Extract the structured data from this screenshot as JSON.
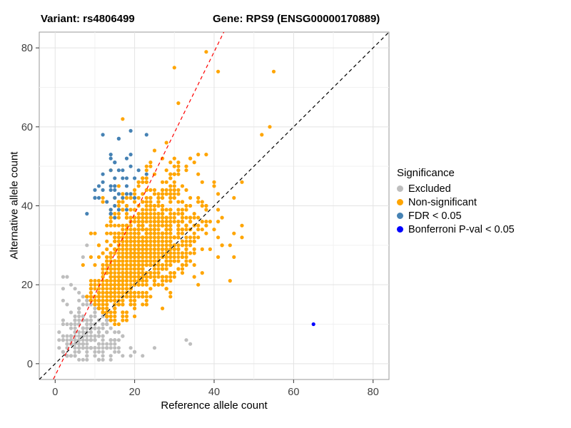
{
  "titles": {
    "variant": "Variant: rs4806499",
    "gene": "Gene: RPS9 (ENSG00000170889)"
  },
  "axes": {
    "x_label": "Reference allele count",
    "y_label": "Alternative allele count",
    "x_ticks": [
      0,
      20,
      40,
      60,
      80
    ],
    "y_ticks": [
      0,
      20,
      40,
      60,
      80
    ],
    "x_minor": [
      10,
      30,
      50,
      70
    ],
    "y_minor": [
      10,
      30,
      50,
      70
    ]
  },
  "legend": {
    "title": "Significance",
    "items": [
      {
        "label": "Excluded",
        "color": "#BEBEBE"
      },
      {
        "label": "Non-significant",
        "color": "#FFA500"
      },
      {
        "label": "FDR < 0.05",
        "color": "#4682B4"
      },
      {
        "label": "Bonferroni P-val < 0.05",
        "color": "#0000FF"
      }
    ]
  },
  "chart_data": {
    "type": "scatter",
    "title": "Variant: rs4806499 / Gene: RPS9 (ENSG00000170889)",
    "xlabel": "Reference allele count",
    "ylabel": "Alternative allele count",
    "xlim": [
      -4,
      84
    ],
    "ylim": [
      -4,
      84
    ],
    "grid": true,
    "legend_position": "right",
    "point_radius": 2.6,
    "seed": 11,
    "series": [
      {
        "name": "Excluded",
        "color": "#BEBEBE",
        "n": 260,
        "model": {
          "total_mean": 15,
          "total_sd": 5,
          "total_min": 5,
          "total_max": 24,
          "frac_mean": 0.45,
          "frac_sd": 0.18,
          "frac_min": 0.08,
          "frac_max": 0.92
        },
        "extra_points": [
          [
            8,
            30
          ],
          [
            7,
            27
          ],
          [
            9,
            33
          ],
          [
            25,
            4
          ],
          [
            33,
            6
          ],
          [
            20,
            3
          ],
          [
            34,
            5
          ],
          [
            3,
            22
          ],
          [
            12,
            2
          ],
          [
            2,
            16
          ]
        ]
      },
      {
        "name": "Non-significant",
        "color": "#FFA500",
        "n": 1500,
        "model": {
          "total_mean": 48,
          "total_sd": 15,
          "total_min": 25,
          "total_max": 120,
          "frac_mean": 0.57,
          "frac_sd": 0.07,
          "frac_min": 0.33,
          "frac_max": 0.78
        },
        "extra_points": [
          [
            38,
            79
          ],
          [
            41,
            74
          ],
          [
            30,
            75
          ],
          [
            54,
            60
          ],
          [
            55,
            74
          ],
          [
            31,
            66
          ],
          [
            47,
            46
          ],
          [
            52,
            58
          ],
          [
            44,
            21
          ]
        ]
      },
      {
        "name": "FDR < 0.05",
        "color": "#4682B4",
        "n": 46,
        "model": {
          "total_mean": 60,
          "total_sd": 8,
          "total_min": 52,
          "total_max": 75,
          "frac_mean": 0.75,
          "frac_sd": 0.04,
          "frac_min": 0.68,
          "frac_max": 0.8
        },
        "extra_points": [
          [
            8,
            38
          ],
          [
            10,
            44
          ],
          [
            23,
            58
          ],
          [
            19,
            59
          ],
          [
            12,
            58
          ],
          [
            16,
            57
          ]
        ]
      },
      {
        "name": "Bonferroni P-val < 0.05",
        "color": "#0000FF",
        "n": 0,
        "extra_points": [
          [
            65,
            10
          ]
        ]
      }
    ],
    "reference_lines": [
      {
        "name": "identity",
        "slope": 1,
        "intercept": 0,
        "color": "#000000",
        "style": "dashed"
      },
      {
        "name": "fit",
        "slope": 2.05,
        "intercept": -3,
        "color": "#FF0000",
        "style": "dashed"
      }
    ]
  }
}
